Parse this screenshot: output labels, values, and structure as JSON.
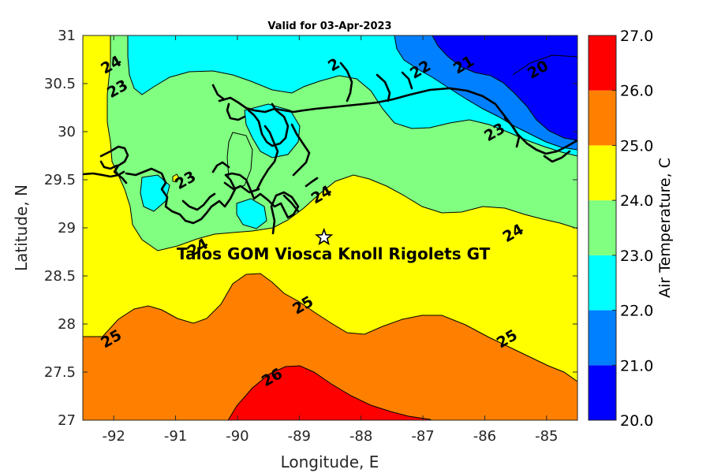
{
  "title": "Valid for 03-Apr-2023",
  "x_label": "Longitude, E",
  "y_label": "Latitude, N",
  "colorbar_label": "Air Temperature, C",
  "station": "Talos GOM Viosca Knoll Rigolets GT",
  "x_ticks": [
    "-92",
    "-91",
    "-90",
    "-89",
    "-88",
    "-87",
    "-86",
    "-85"
  ],
  "y_ticks": [
    "27",
    "27.5",
    "28",
    "28.5",
    "29",
    "29.5",
    "30",
    "30.5",
    "31"
  ],
  "colorbar_ticks": [
    "20.0",
    "21.0",
    "22.0",
    "23.0",
    "24.0",
    "25.0",
    "26.0",
    "27.0"
  ],
  "colorbar_colors": [
    "#0000ff",
    "#0080ff",
    "#00ffff",
    "#80ff80",
    "#ffff00",
    "#ff8000",
    "#ff0000"
  ],
  "contour_labels": [
    {
      "text": "24",
      "lon": -92.0,
      "lat": 30.65
    },
    {
      "text": "23",
      "lon": -91.9,
      "lat": 30.4
    },
    {
      "text": "23",
      "lon": -90.8,
      "lat": 29.45
    },
    {
      "text": "24",
      "lon": -88.6,
      "lat": 29.3
    },
    {
      "text": "24",
      "lon": -90.6,
      "lat": 28.75
    },
    {
      "text": "24",
      "lon": -85.5,
      "lat": 28.9
    },
    {
      "text": "25",
      "lon": -92.0,
      "lat": 27.8
    },
    {
      "text": "25",
      "lon": -88.9,
      "lat": 28.15
    },
    {
      "text": "25",
      "lon": -85.6,
      "lat": 27.8
    },
    {
      "text": "26",
      "lon": -89.4,
      "lat": 27.4
    },
    {
      "text": "21",
      "lon": -86.3,
      "lat": 30.65
    },
    {
      "text": "20",
      "lon": -85.1,
      "lat": 30.6
    },
    {
      "text": "22",
      "lon": -87.0,
      "lat": 30.6
    },
    {
      "text": "23",
      "lon": -85.8,
      "lat": 29.95
    },
    {
      "text": "2",
      "lon": -88.4,
      "lat": 30.65
    }
  ],
  "chart_data": {
    "type": "contourf",
    "title": "Valid for 03-Apr-2023",
    "xlabel": "Longitude, E",
    "ylabel": "Latitude, N",
    "xlim": [
      -92.5,
      -84.5
    ],
    "ylim": [
      27,
      31
    ],
    "colorbar": {
      "label": "Air Temperature, C",
      "range": [
        20.0,
        27.0
      ],
      "step": 1.0
    },
    "contour_levels": [
      20,
      21,
      22,
      23,
      24,
      25,
      26,
      27
    ],
    "station": {
      "name": "Talos GOM Viosca Knoll Rigolets GT",
      "lon": -88.6,
      "lat": 28.9,
      "marker": "star"
    }
  }
}
